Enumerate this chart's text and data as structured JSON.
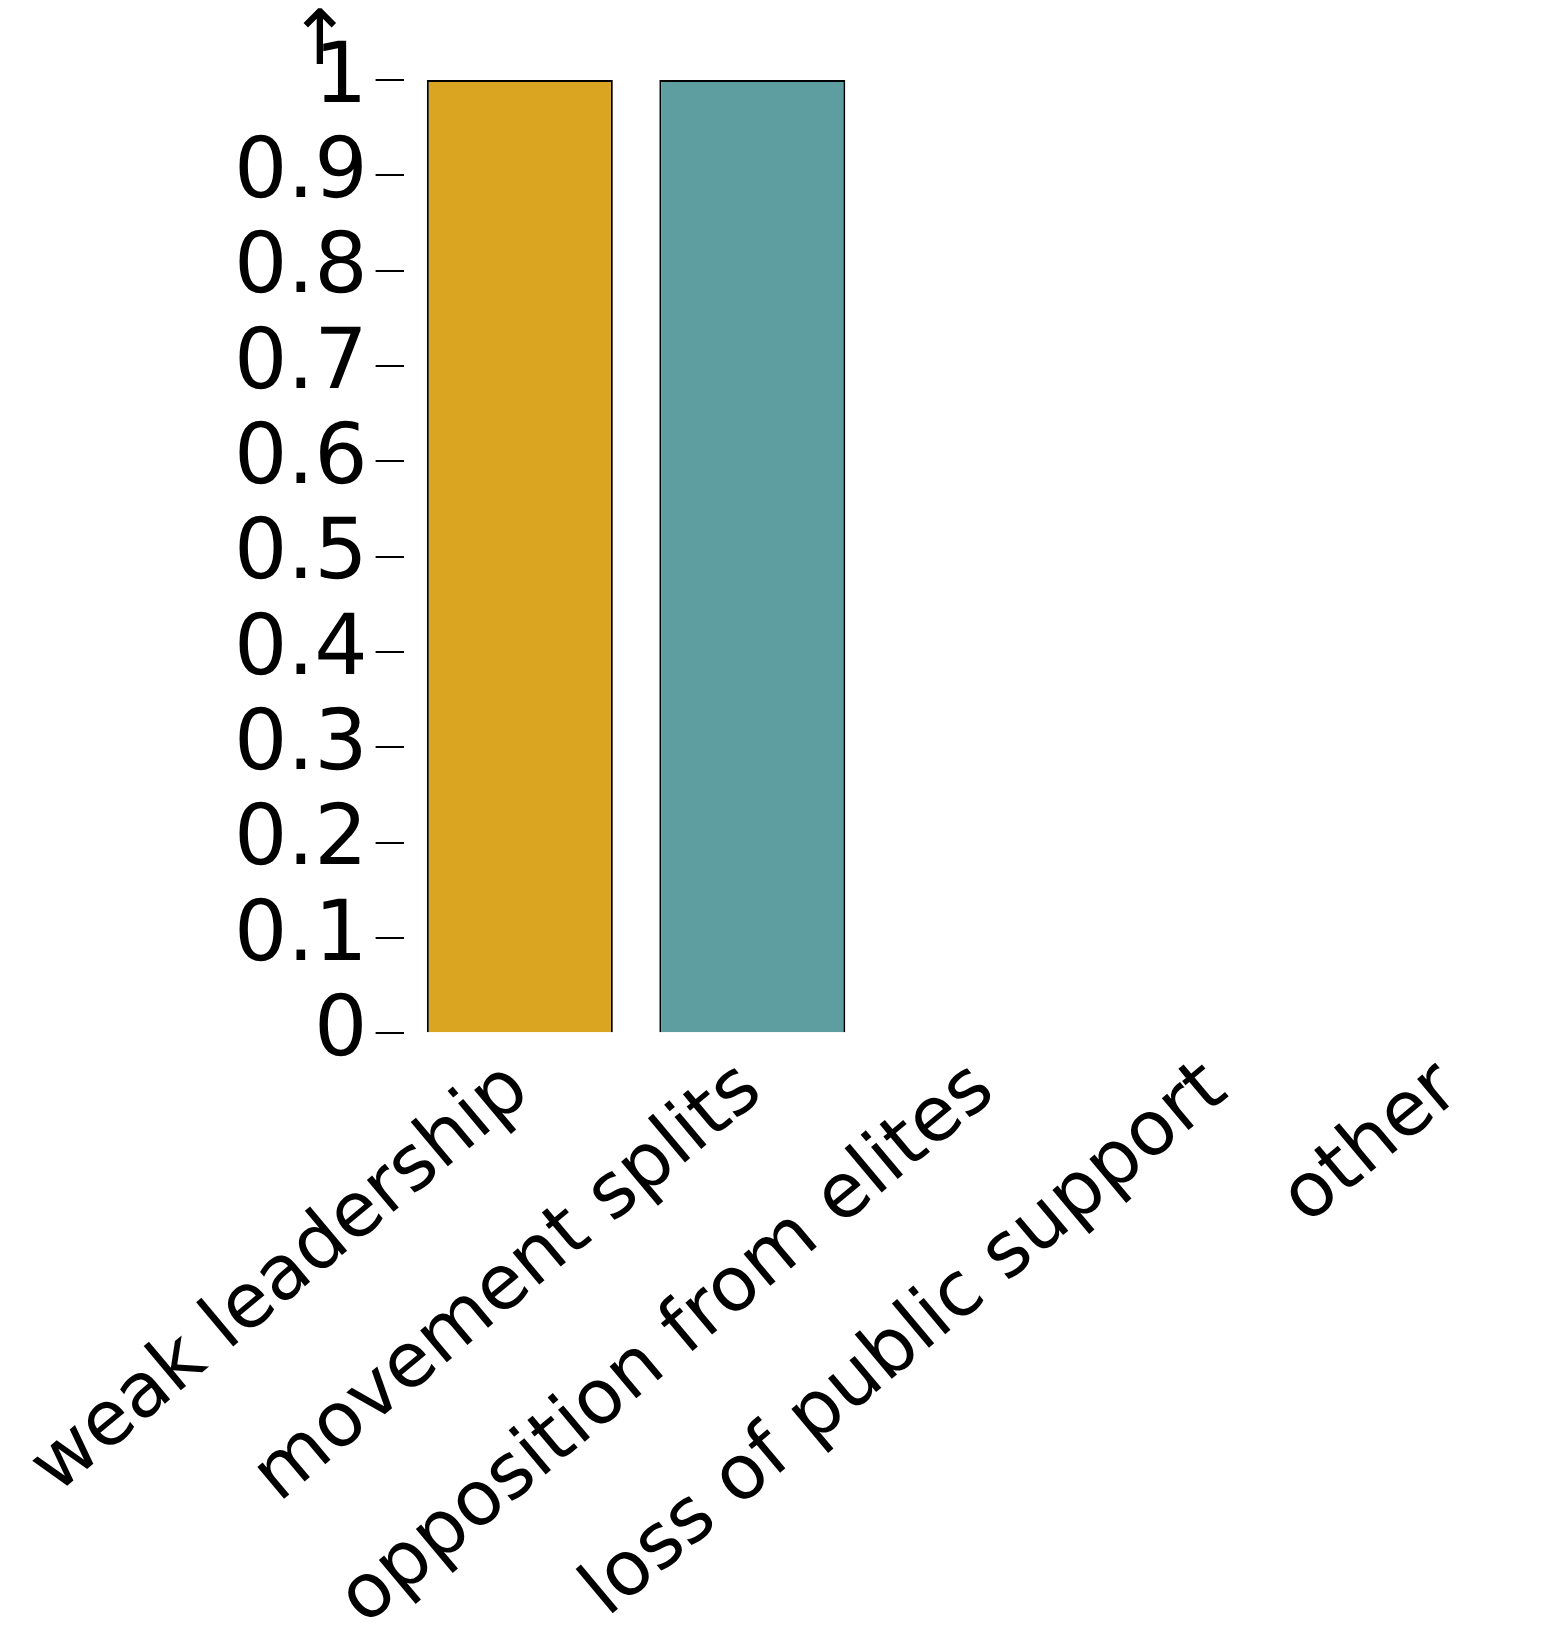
{
  "chart_data": {
    "type": "bar",
    "ylabel": "↑",
    "categories": [
      "weak leadership",
      "movement splits",
      "opposition from elites",
      "loss of public support",
      "other"
    ],
    "values": [
      1,
      1,
      0,
      0,
      0
    ],
    "colors": [
      "#daa520",
      "#5f9ea0",
      null,
      null,
      null
    ],
    "ylim": [
      0,
      1
    ],
    "yticks": [
      0,
      0.1,
      0.2,
      0.3,
      0.4,
      0.5,
      0.6,
      0.7,
      0.8,
      0.9,
      1
    ],
    "grid": false,
    "legend": false
  }
}
